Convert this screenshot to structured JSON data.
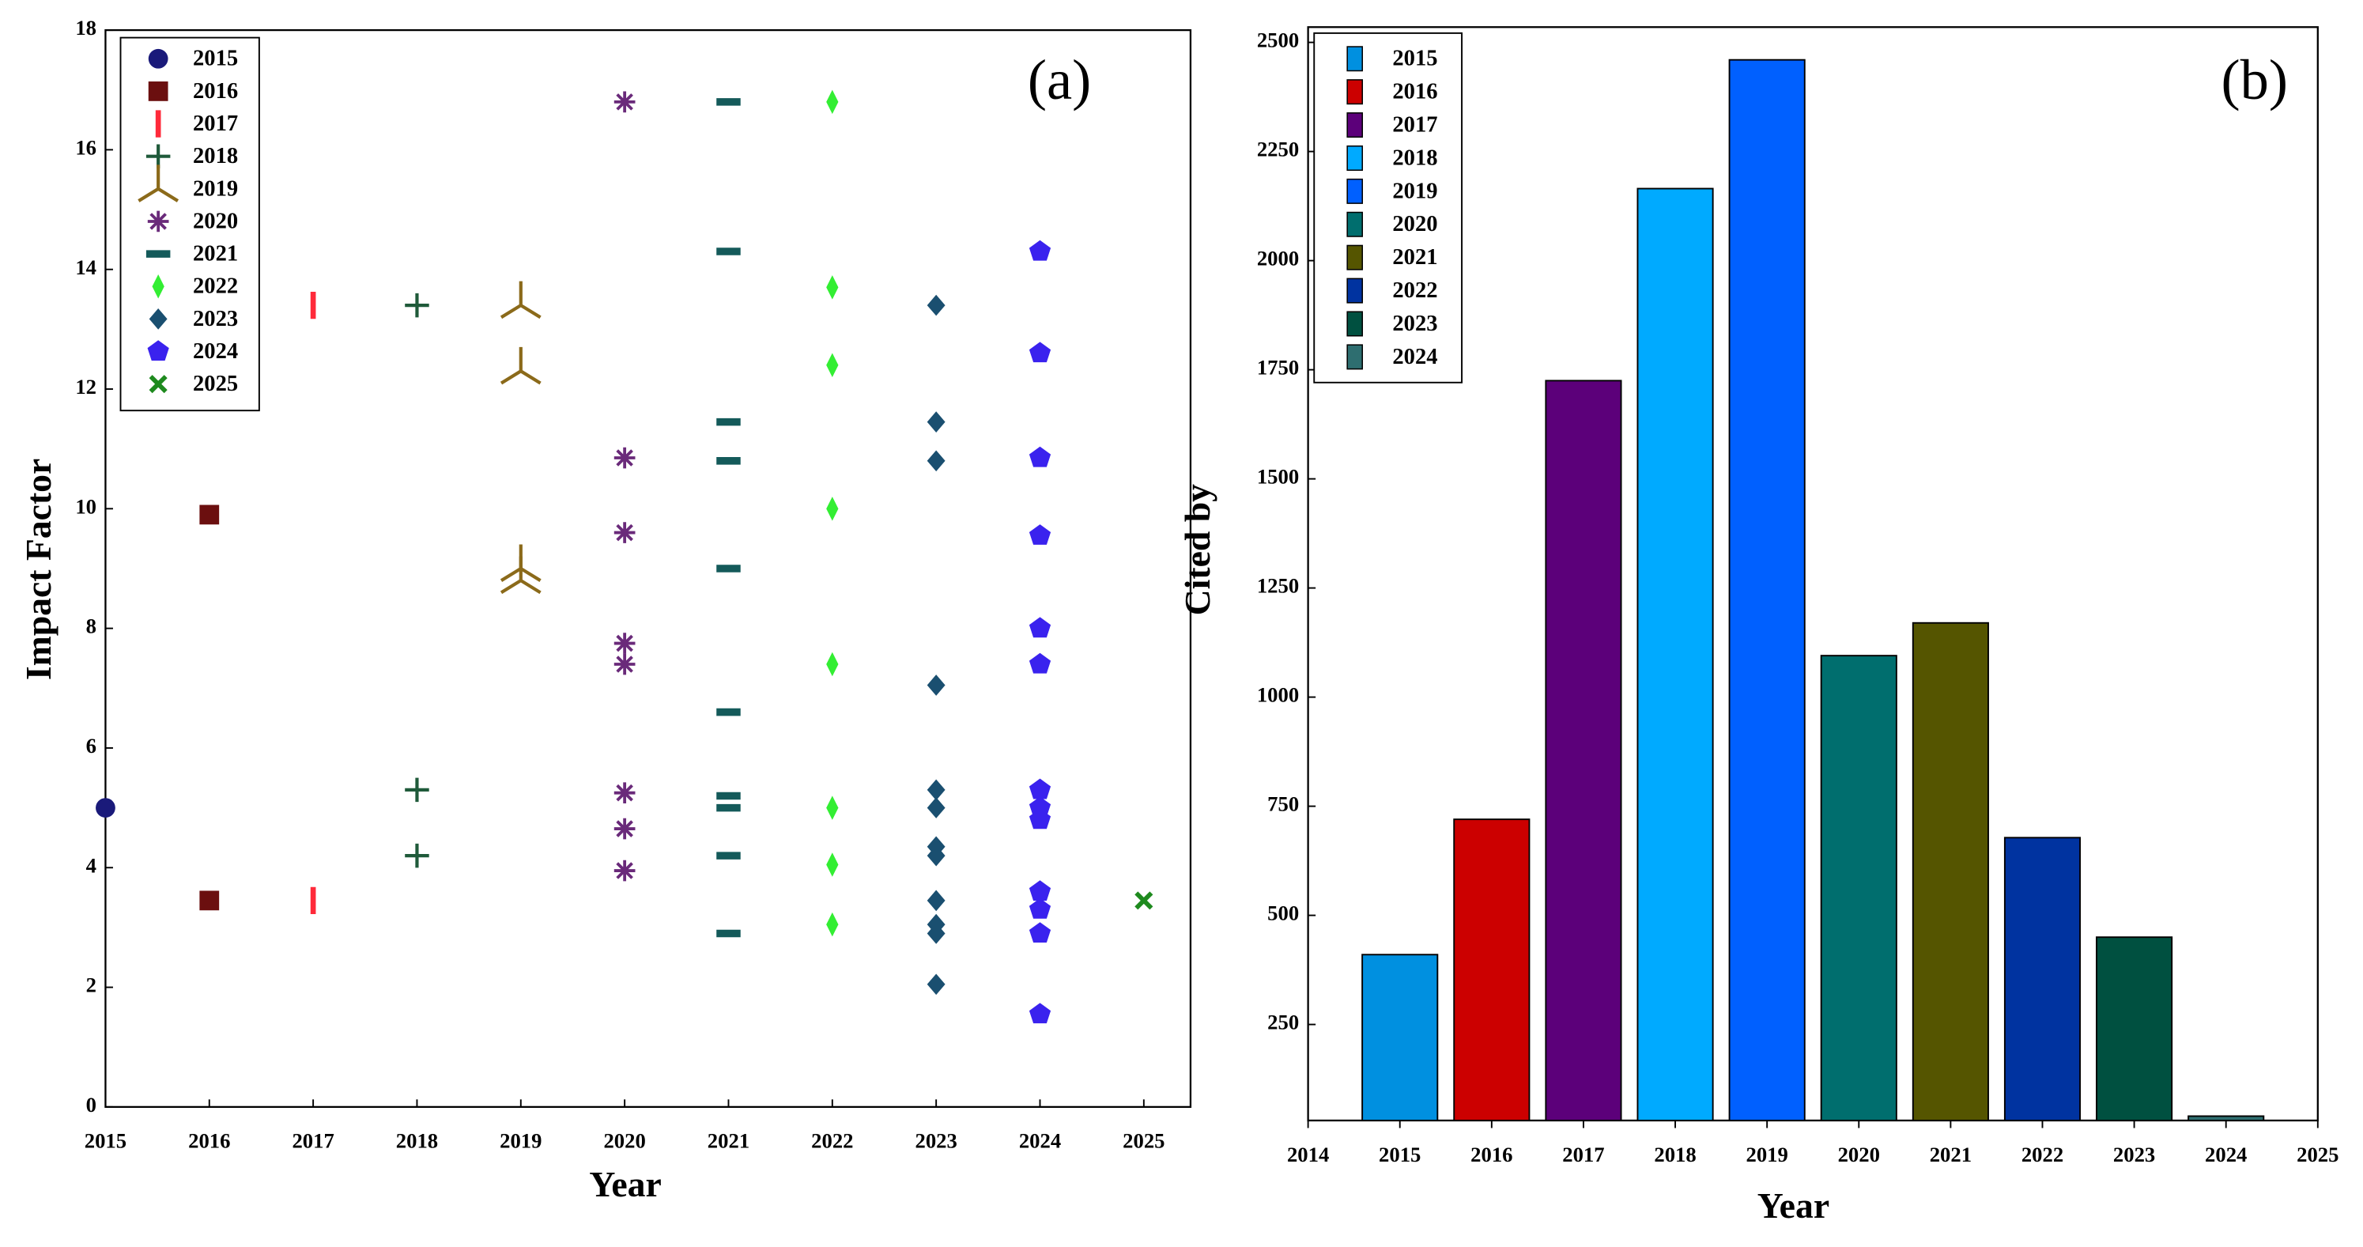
{
  "chart_data": [
    {
      "type": "scatter",
      "annotation": "(a)",
      "xlabel": "Year",
      "ylabel": "Impact Factor",
      "xlim": [
        2015,
        2025
      ],
      "xticks": [
        2015,
        2016,
        2017,
        2018,
        2019,
        2020,
        2021,
        2022,
        2023,
        2024,
        2025
      ],
      "ylim": [
        0,
        18
      ],
      "yticks": [
        0,
        2,
        4,
        6,
        8,
        10,
        12,
        14,
        16,
        18
      ],
      "legend": "upper left",
      "series": [
        {
          "name": "2015",
          "color": "#1a1a7a",
          "marker": "circle",
          "x": [
            2015
          ],
          "values": [
            5.0
          ]
        },
        {
          "name": "2016",
          "color": "#6b0f0f",
          "marker": "square",
          "x": [
            2016,
            2016
          ],
          "values": [
            9.9,
            3.45
          ]
        },
        {
          "name": "2017",
          "color": "#ff2a3a",
          "marker": "vline",
          "x": [
            2017,
            2017
          ],
          "values": [
            13.4,
            3.45
          ]
        },
        {
          "name": "2018",
          "color": "#1f5a3a",
          "marker": "plus",
          "x": [
            2018,
            2018,
            2018
          ],
          "values": [
            13.4,
            5.3,
            4.2
          ]
        },
        {
          "name": "2019",
          "color": "#8b6a1a",
          "marker": "tri",
          "x": [
            2019,
            2019,
            2019,
            2019
          ],
          "values": [
            13.4,
            12.3,
            9.0,
            8.8
          ]
        },
        {
          "name": "2020",
          "color": "#6a2a7a",
          "marker": "star",
          "x": [
            2020,
            2020,
            2020,
            2020,
            2020,
            2020,
            2020,
            2020
          ],
          "values": [
            16.8,
            10.85,
            9.6,
            7.75,
            7.4,
            5.25,
            4.65,
            3.95
          ]
        },
        {
          "name": "2021",
          "color": "#145a5a",
          "marker": "hline",
          "x": [
            2021,
            2021,
            2021,
            2021,
            2021,
            2021,
            2021,
            2021,
            2021,
            2021
          ],
          "values": [
            16.8,
            14.3,
            11.45,
            10.8,
            9.0,
            6.6,
            5.2,
            5.0,
            4.2,
            2.9
          ]
        },
        {
          "name": "2022",
          "color": "#33ee33",
          "marker": "thin_diamond",
          "x": [
            2022,
            2022,
            2022,
            2022,
            2022,
            2022,
            2022,
            2022
          ],
          "values": [
            16.8,
            13.7,
            12.4,
            10.0,
            7.4,
            5.0,
            4.05,
            3.05
          ]
        },
        {
          "name": "2023",
          "color": "#1a4f70",
          "marker": "diamond",
          "x": [
            2023,
            2023,
            2023,
            2023,
            2023,
            2023,
            2023,
            2023,
            2023,
            2023,
            2023,
            2023
          ],
          "values": [
            13.4,
            11.45,
            10.8,
            7.05,
            5.3,
            5.0,
            4.35,
            4.2,
            3.45,
            3.05,
            2.9,
            2.05
          ]
        },
        {
          "name": "2024",
          "color": "#3a22ee",
          "marker": "pentagon",
          "x": [
            2024,
            2024,
            2024,
            2024,
            2024,
            2024,
            2024,
            2024,
            2024,
            2024,
            2024,
            2024,
            2024
          ],
          "values": [
            14.3,
            12.6,
            10.85,
            9.55,
            8.0,
            7.4,
            5.3,
            5.0,
            4.8,
            3.6,
            3.3,
            2.9,
            1.55
          ]
        },
        {
          "name": "2025",
          "color": "#1e8a1e",
          "marker": "x",
          "x": [
            2025
          ],
          "values": [
            3.45
          ]
        }
      ]
    },
    {
      "type": "bar",
      "annotation": "(b)",
      "xlabel": "Year",
      "ylabel": "Cited by",
      "xlim": [
        2014,
        2025
      ],
      "xticks": [
        2014,
        2015,
        2016,
        2017,
        2018,
        2019,
        2020,
        2021,
        2022,
        2023,
        2024,
        2025
      ],
      "ylim": [
        30,
        2535
      ],
      "yticks": [
        250,
        500,
        750,
        1000,
        1250,
        1500,
        1750,
        2000,
        2250,
        2500
      ],
      "legend": "upper left",
      "x": [
        2015,
        2016,
        2017,
        2018,
        2019,
        2020,
        2021,
        2022,
        2023,
        2024
      ],
      "values": [
        410,
        720,
        1725,
        2165,
        2460,
        1095,
        1170,
        678,
        450,
        40
      ],
      "colors": [
        "#0090e0",
        "#cc0000",
        "#5c007a",
        "#00aaff",
        "#0060ff",
        "#006e6e",
        "#555500",
        "#0033a0",
        "#005040",
        "#2e6e70"
      ]
    }
  ]
}
